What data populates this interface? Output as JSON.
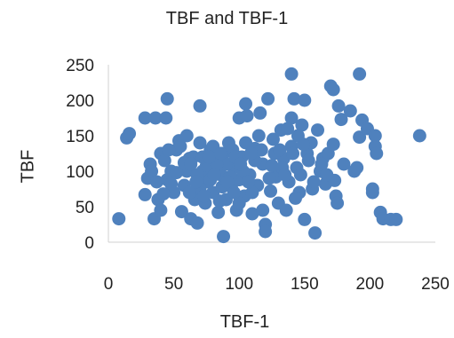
{
  "chart_data": {
    "type": "scatter",
    "title": "TBF and TBF-1",
    "xlabel": "TBF-1",
    "ylabel": "TBF",
    "xlim": [
      0,
      250
    ],
    "ylim": [
      0,
      250
    ],
    "x_ticks": [
      "0",
      "50",
      "100",
      "150",
      "200",
      "250"
    ],
    "y_ticks": [
      "0",
      "50",
      "100",
      "150",
      "200",
      "250"
    ],
    "grid": false,
    "legend": "none",
    "marker_color": "#4F81BD",
    "series": [
      {
        "points": [
          [
            8,
            33
          ],
          [
            14,
            147
          ],
          [
            16,
            153
          ],
          [
            28,
            175
          ],
          [
            28,
            67
          ],
          [
            30,
            90
          ],
          [
            32,
            110
          ],
          [
            35,
            33
          ],
          [
            36,
            175
          ],
          [
            38,
            60
          ],
          [
            40,
            45
          ],
          [
            40,
            125
          ],
          [
            43,
            115
          ],
          [
            44,
            175
          ],
          [
            45,
            202
          ],
          [
            45,
            88
          ],
          [
            48,
            100
          ],
          [
            50,
            70
          ],
          [
            52,
            130
          ],
          [
            54,
            143
          ],
          [
            56,
            43
          ],
          [
            58,
            80
          ],
          [
            60,
            150
          ],
          [
            62,
            118
          ],
          [
            63,
            33
          ],
          [
            66,
            60
          ],
          [
            68,
            27
          ],
          [
            70,
            192
          ],
          [
            70,
            140
          ],
          [
            72,
            100
          ],
          [
            74,
            55
          ],
          [
            76,
            85
          ],
          [
            78,
            130
          ],
          [
            80,
            70
          ],
          [
            82,
            115
          ],
          [
            84,
            42
          ],
          [
            86,
            95
          ],
          [
            88,
            8
          ],
          [
            88,
            125
          ],
          [
            90,
            60
          ],
          [
            92,
            140
          ],
          [
            94,
            78
          ],
          [
            96,
            105
          ],
          [
            98,
            45
          ],
          [
            100,
            175
          ],
          [
            100,
            88
          ],
          [
            102,
            120
          ],
          [
            104,
            65
          ],
          [
            105,
            195
          ],
          [
            106,
            178
          ],
          [
            108,
            95
          ],
          [
            110,
            40
          ],
          [
            112,
            132
          ],
          [
            114,
            80
          ],
          [
            116,
            182
          ],
          [
            118,
            110
          ],
          [
            120,
            25
          ],
          [
            120,
            15
          ],
          [
            122,
            202
          ],
          [
            124,
            72
          ],
          [
            126,
            145
          ],
          [
            128,
            92
          ],
          [
            130,
            55
          ],
          [
            132,
            158
          ],
          [
            134,
            118
          ],
          [
            136,
            45
          ],
          [
            138,
            85
          ],
          [
            140,
            237
          ],
          [
            140,
            175
          ],
          [
            140,
            135
          ],
          [
            142,
            202
          ],
          [
            144,
            105
          ],
          [
            146,
            70
          ],
          [
            148,
            165
          ],
          [
            150,
            32
          ],
          [
            150,
            200
          ],
          [
            152,
            125
          ],
          [
            155,
            140
          ],
          [
            156,
            75
          ],
          [
            158,
            13
          ],
          [
            160,
            158
          ],
          [
            162,
            100
          ],
          [
            164,
            118
          ],
          [
            166,
            82
          ],
          [
            168,
            125
          ],
          [
            170,
            220
          ],
          [
            172,
            215
          ],
          [
            172,
            138
          ],
          [
            173,
            87
          ],
          [
            174,
            65
          ],
          [
            175,
            55
          ],
          [
            176,
            192
          ],
          [
            178,
            173
          ],
          [
            180,
            110
          ],
          [
            185,
            185
          ],
          [
            188,
            100
          ],
          [
            190,
            105
          ],
          [
            192,
            148
          ],
          [
            192,
            237
          ],
          [
            194,
            172
          ],
          [
            198,
            160
          ],
          [
            202,
            75
          ],
          [
            202,
            70
          ],
          [
            204,
            135
          ],
          [
            204,
            150
          ],
          [
            205,
            125
          ],
          [
            208,
            42
          ],
          [
            210,
            33
          ],
          [
            216,
            32
          ],
          [
            220,
            32
          ],
          [
            238,
            150
          ],
          [
            48,
            82
          ],
          [
            55,
            135
          ],
          [
            60,
            100
          ],
          [
            65,
            120
          ],
          [
            70,
            75
          ],
          [
            75,
            108
          ],
          [
            80,
            135
          ],
          [
            85,
            58
          ],
          [
            90,
            110
          ],
          [
            95,
            130
          ],
          [
            100,
            55
          ],
          [
            105,
            140
          ],
          [
            110,
            70
          ],
          [
            115,
            150
          ],
          [
            118,
            45
          ],
          [
            123,
            90
          ],
          [
            127,
            125
          ],
          [
            133,
            105
          ],
          [
            137,
            160
          ],
          [
            143,
            62
          ],
          [
            147,
            95
          ],
          [
            153,
            115
          ],
          [
            157,
            85
          ],
          [
            163,
            110
          ],
          [
            167,
            95
          ],
          [
            33,
            100
          ],
          [
            37,
            85
          ],
          [
            42,
            68
          ],
          [
            46,
            130
          ],
          [
            52,
            98
          ],
          [
            58,
            112
          ],
          [
            62,
            70
          ],
          [
            68,
            95
          ],
          [
            72,
            120
          ],
          [
            78,
            88
          ],
          [
            83,
            110
          ],
          [
            87,
            78
          ],
          [
            93,
            92
          ],
          [
            97,
            120
          ],
          [
            103,
            100
          ],
          [
            107,
            85
          ],
          [
            112,
            115
          ],
          [
            117,
            130
          ],
          [
            125,
            108
          ],
          [
            131,
            130
          ],
          [
            135,
            95
          ],
          [
            141,
            125
          ],
          [
            145,
            150
          ],
          [
            149,
            138
          ],
          [
            63,
            110
          ],
          [
            67,
            85
          ],
          [
            73,
            65
          ],
          [
            77,
            120
          ],
          [
            81,
            95
          ],
          [
            86,
            125
          ],
          [
            91,
            85
          ],
          [
            96,
            70
          ],
          [
            101,
            110
          ],
          [
            109,
            125
          ]
        ]
      }
    ]
  }
}
